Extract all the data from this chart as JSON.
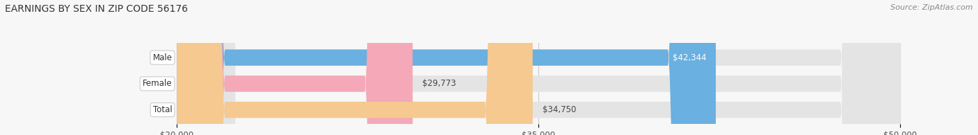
{
  "title": "EARNINGS BY SEX IN ZIP CODE 56176",
  "source": "Source: ZipAtlas.com",
  "categories": [
    "Male",
    "Female",
    "Total"
  ],
  "values": [
    42344,
    29773,
    34750
  ],
  "bar_colors": [
    "#6ab0e0",
    "#f4a8b8",
    "#f5c990"
  ],
  "bar_labels": [
    "$42,344",
    "$29,773",
    "$34,750"
  ],
  "label_inside": [
    true,
    false,
    false
  ],
  "xlim": [
    20000,
    50000
  ],
  "xticks": [
    20000,
    35000,
    50000
  ],
  "xtick_labels": [
    "$20,000",
    "$35,000",
    "$50,000"
  ],
  "background_color": "#f7f7f7",
  "bar_bg_color": "#e4e4e4",
  "title_fontsize": 10,
  "source_fontsize": 8,
  "bar_height": 0.62,
  "figsize": [
    14.06,
    1.95
  ],
  "dpi": 100
}
